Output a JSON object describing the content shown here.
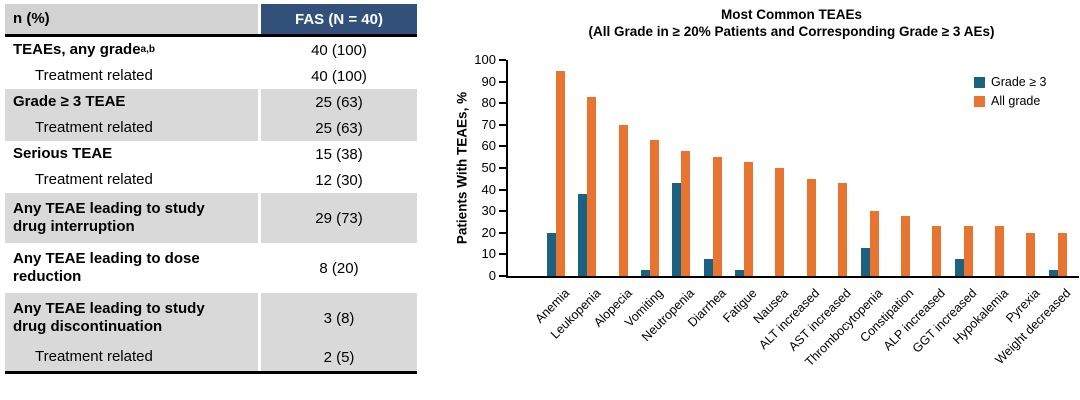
{
  "colors": {
    "header_navy": "#31517B",
    "header_gray": "#D2D2D2",
    "row_gray": "#D9D9D9",
    "grade3_blue": "#1B6280",
    "allgrade_orange": "#E87431"
  },
  "table": {
    "header": {
      "col1": "n (%)",
      "col2": "FAS (N = 40)"
    },
    "rows": [
      {
        "label": "TEAEs, any grade",
        "sup": "a,b",
        "value": "40 (100)",
        "bold": true,
        "indent": false,
        "shaded": false,
        "twoLine": false
      },
      {
        "label": "Treatment related",
        "value": "40 (100)",
        "bold": false,
        "indent": true,
        "shaded": false,
        "twoLine": false
      },
      {
        "label": "Grade ≥ 3 TEAE",
        "value": "25 (63)",
        "bold": true,
        "indent": false,
        "shaded": true,
        "twoLine": false
      },
      {
        "label": "Treatment related",
        "value": "25 (63)",
        "bold": false,
        "indent": true,
        "shaded": true,
        "twoLine": false
      },
      {
        "label": "Serious TEAE",
        "value": "15 (38)",
        "bold": true,
        "indent": false,
        "shaded": false,
        "twoLine": false
      },
      {
        "label": "Treatment related",
        "value": "12 (30)",
        "bold": false,
        "indent": true,
        "shaded": false,
        "twoLine": false
      },
      {
        "label": "Any TEAE leading to study drug interruption",
        "value": "29 (73)",
        "bold": true,
        "indent": false,
        "shaded": true,
        "twoLine": true
      },
      {
        "label": "Any TEAE leading to dose reduction",
        "value": "8 (20)",
        "bold": true,
        "indent": false,
        "shaded": false,
        "twoLine": true
      },
      {
        "label": "Any TEAE leading to study drug discontinuation",
        "value": "3 (8)",
        "bold": true,
        "indent": false,
        "shaded": true,
        "twoLine": true
      },
      {
        "label": "Treatment related",
        "value": "2 (5)",
        "bold": false,
        "indent": true,
        "shaded": true,
        "twoLine": false,
        "last": true
      }
    ]
  },
  "chart_data": {
    "type": "bar",
    "title": "Most Common TEAEs",
    "subtitle": "(All Grade in ≥ 20% Patients and Corresponding Grade ≥ 3 AEs)",
    "ylabel": "Patients With TEAEs, %",
    "xlabel": "",
    "ylim": [
      0,
      100
    ],
    "ytick_step": 10,
    "grid": false,
    "legend_position": "top-right-inside",
    "categories": [
      "Anemia",
      "Leukopenia",
      "Alopecia",
      "Vomiting",
      "Neutropenia",
      "Diarrhea",
      "Fatigue",
      "Nausea",
      "ALT increased",
      "AST increased",
      "Thrombocytopenia",
      "Constipation",
      "ALP increased",
      "GGT increased",
      "Hypokalemia",
      "Pyrexia",
      "Weight decreased"
    ],
    "series": [
      {
        "name": "Grade ≥ 3",
        "color": "#1B6280",
        "values": [
          20,
          38,
          0,
          3,
          43,
          8,
          3,
          0,
          0,
          0,
          13,
          0,
          0,
          8,
          0,
          0,
          3
        ]
      },
      {
        "name": "All grade",
        "color": "#E87431",
        "values": [
          95,
          83,
          70,
          63,
          58,
          55,
          53,
          50,
          45,
          43,
          30,
          28,
          23,
          23,
          23,
          20,
          20
        ]
      }
    ]
  }
}
